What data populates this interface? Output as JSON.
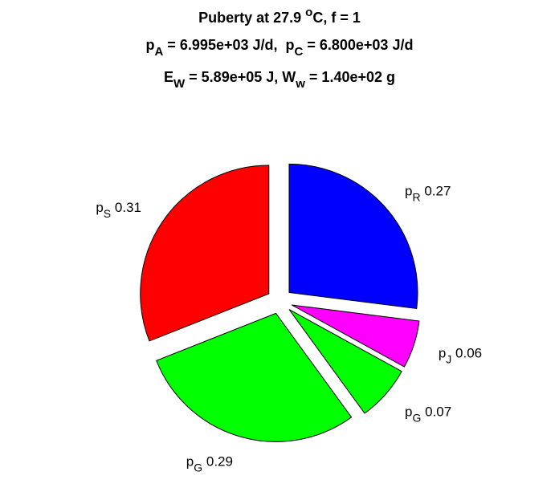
{
  "chart_data": {
    "type": "pie",
    "title": [
      [
        {
          "text": "Puberty at 27.9 "
        },
        {
          "text": "o",
          "shift": "sup"
        },
        {
          "text": "C, f = 1"
        }
      ],
      [
        {
          "text": "p"
        },
        {
          "text": "A",
          "shift": "sub"
        },
        {
          "text": " = 6.995e+03 J/d,  p"
        },
        {
          "text": "C",
          "shift": "sub"
        },
        {
          "text": " = 6.800e+03 J/d"
        }
      ],
      [
        {
          "text": "E"
        },
        {
          "text": "W",
          "shift": "sub"
        },
        {
          "text": " = 5.89e+05 J, W"
        },
        {
          "text": "w",
          "shift": "sub"
        },
        {
          "text": " = 1.40e+02 g"
        }
      ]
    ],
    "categories": [
      {
        "base": "p",
        "sub": "R"
      },
      {
        "base": "p",
        "sub": "J"
      },
      {
        "base": "p",
        "sub": "G"
      },
      {
        "base": "p",
        "sub": "G"
      },
      {
        "base": "p",
        "sub": "S"
      }
    ],
    "values": [
      0.27,
      0.06,
      0.07,
      0.29,
      0.31
    ],
    "colors": [
      "#0000ff",
      "#ff00ff",
      "#00ff00",
      "#00ff00",
      "#ff0000"
    ],
    "explode": true
  }
}
